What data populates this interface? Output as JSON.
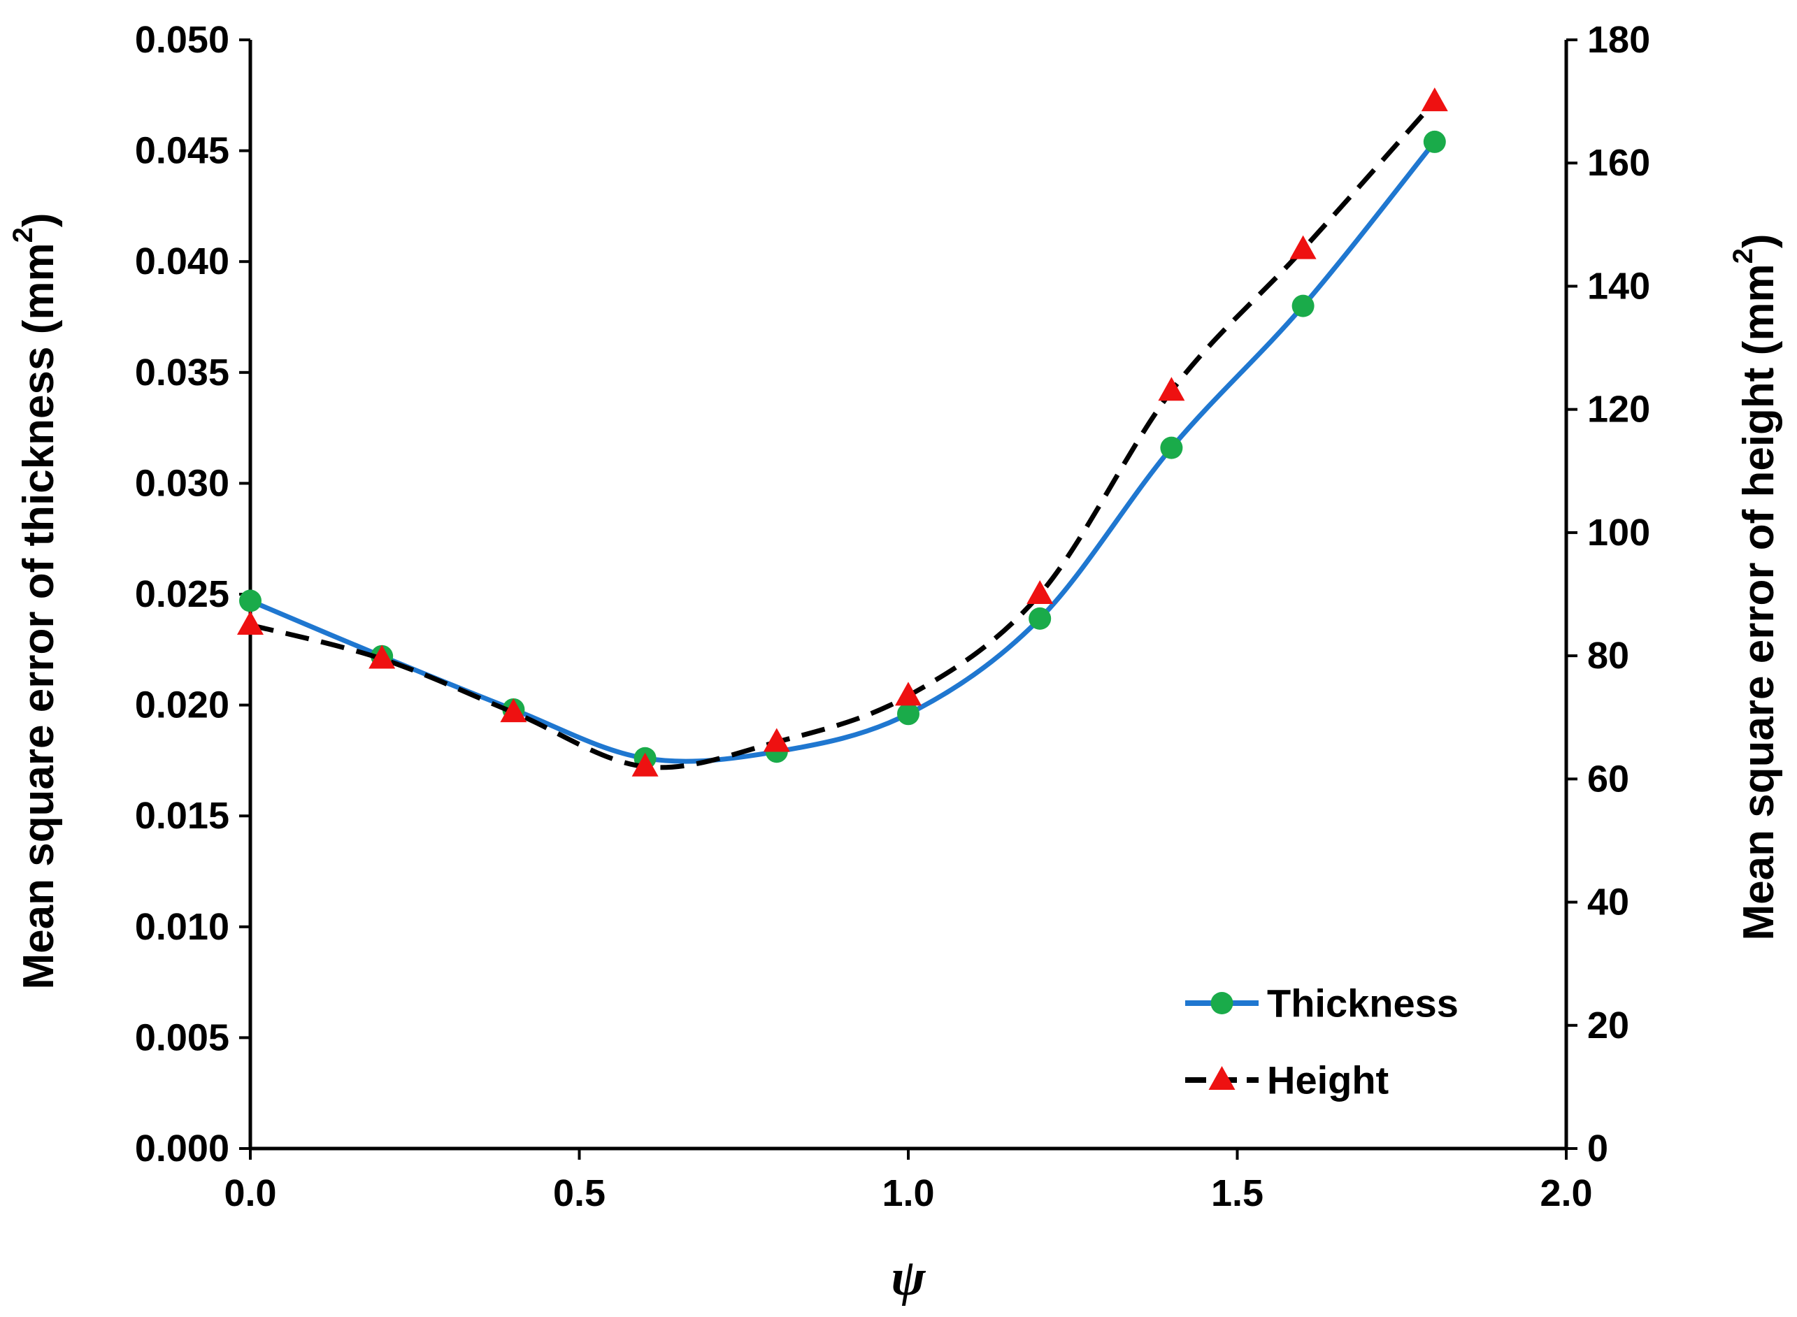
{
  "chart_data": {
    "type": "line",
    "title": "",
    "xlabel": "ψ",
    "ylabel_left": {
      "text": "Mean square error of thickness (mm",
      "sup": "2",
      "close": ")"
    },
    "ylabel_right": {
      "text": "Mean square error of height (mm",
      "sup": "2",
      "close": ")"
    },
    "xlim": [
      0,
      2
    ],
    "ylim_left": [
      0,
      0.05
    ],
    "ylim_right": [
      0,
      180
    ],
    "x_ticks": [
      "0.0",
      "0.5",
      "1.0",
      "1.5",
      "2.0"
    ],
    "x_tick_values": [
      0,
      0.5,
      1.0,
      1.5,
      2.0
    ],
    "y_left_ticks": [
      "0.000",
      "0.005",
      "0.010",
      "0.015",
      "0.020",
      "0.025",
      "0.030",
      "0.035",
      "0.040",
      "0.045",
      "0.050"
    ],
    "y_left_tick_values": [
      0,
      0.005,
      0.01,
      0.015,
      0.02,
      0.025,
      0.03,
      0.035,
      0.04,
      0.045,
      0.05
    ],
    "y_right_ticks": [
      "0",
      "20",
      "40",
      "60",
      "80",
      "100",
      "120",
      "140",
      "160",
      "180"
    ],
    "y_right_tick_values": [
      0,
      20,
      40,
      60,
      80,
      100,
      120,
      140,
      160,
      180
    ],
    "legend_position": "bottom-right",
    "series": [
      {
        "name": "Thickness",
        "axis": "left",
        "color": "#1f77d0",
        "marker_color": "#1aab4a",
        "marker": "circle",
        "line_style": "solid",
        "x": [
          0,
          0.2,
          0.4,
          0.6,
          0.8,
          1.0,
          1.2,
          1.4,
          1.6,
          1.8
        ],
        "values": [
          0.0247,
          0.0222,
          0.0198,
          0.0176,
          0.0179,
          0.0196,
          0.0239,
          0.0316,
          0.038,
          0.0454
        ]
      },
      {
        "name": "Height",
        "axis": "right",
        "color": "#000000",
        "marker_color": "#ee1111",
        "marker": "triangle",
        "line_style": "dashed",
        "x": [
          0,
          0.2,
          0.4,
          0.6,
          0.8,
          1.0,
          1.2,
          1.4,
          1.6,
          1.8
        ],
        "values": [
          85,
          79.5,
          70.8,
          62,
          66,
          73.5,
          90,
          123,
          146,
          170
        ]
      }
    ]
  }
}
